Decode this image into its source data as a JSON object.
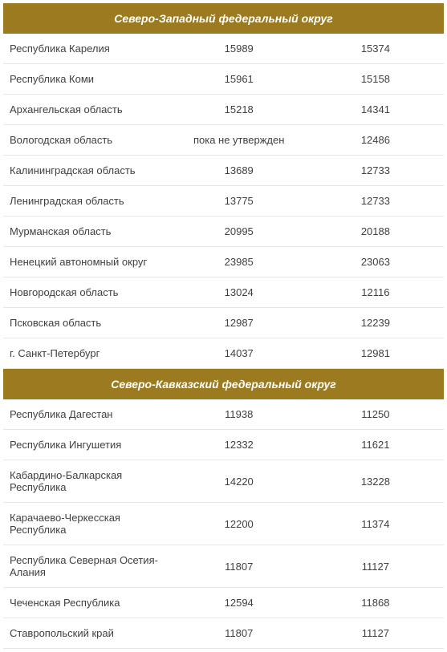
{
  "table": {
    "header_bg": "#9c7a1f",
    "header_fg": "#ffffff",
    "row_border": "#e6e6e6",
    "text_color": "#404040",
    "font_size_body": 13,
    "font_size_header": 14,
    "columns": [
      "name",
      "val1",
      "val2"
    ],
    "col_widths_pct": [
      38,
      31,
      31
    ],
    "sections": [
      {
        "title": "Северо-Западный федеральный округ",
        "rows": [
          {
            "name": "Республика Карелия",
            "val1": "15989",
            "val2": "15374"
          },
          {
            "name": "Республика Коми",
            "val1": "15961",
            "val2": "15158"
          },
          {
            "name": "Архангельская область",
            "val1": "15218",
            "val2": "14341"
          },
          {
            "name": "Вологодская область",
            "val1": "пока не утвержден",
            "val2": "12486"
          },
          {
            "name": "Калининградская область",
            "val1": "13689",
            "val2": "12733"
          },
          {
            "name": "Ленинградская область",
            "val1": "13775",
            "val2": "12733"
          },
          {
            "name": "Мурманская область",
            "val1": "20995",
            "val2": "20188"
          },
          {
            "name": "Ненецкий автономный округ",
            "val1": "23985",
            "val2": "23063"
          },
          {
            "name": "Новгородская область",
            "val1": "13024",
            "val2": "12116"
          },
          {
            "name": "Псковская область",
            "val1": "12987",
            "val2": "12239"
          },
          {
            "name": "г. Санкт-Петербург",
            "val1": "14037",
            "val2": "12981"
          }
        ]
      },
      {
        "title": "Северо-Кавказский федеральный округ",
        "rows": [
          {
            "name": "Республика Дагестан",
            "val1": "11938",
            "val2": "11250"
          },
          {
            "name": "Республика Ингушетия",
            "val1": "12332",
            "val2": "11621"
          },
          {
            "name": "Кабардино-Балкарская Республика",
            "val1": "14220",
            "val2": "13228"
          },
          {
            "name": "Карачаево-Черкесская Республика",
            "val1": "12200",
            "val2": "11374"
          },
          {
            "name": "Республика Северная Осетия-Алания",
            "val1": "11807",
            "val2": "11127"
          },
          {
            "name": "Чеченская Республика",
            "val1": "12594",
            "val2": "11868"
          },
          {
            "name": "Ставропольский край",
            "val1": "11807",
            "val2": "11127"
          }
        ]
      }
    ]
  }
}
